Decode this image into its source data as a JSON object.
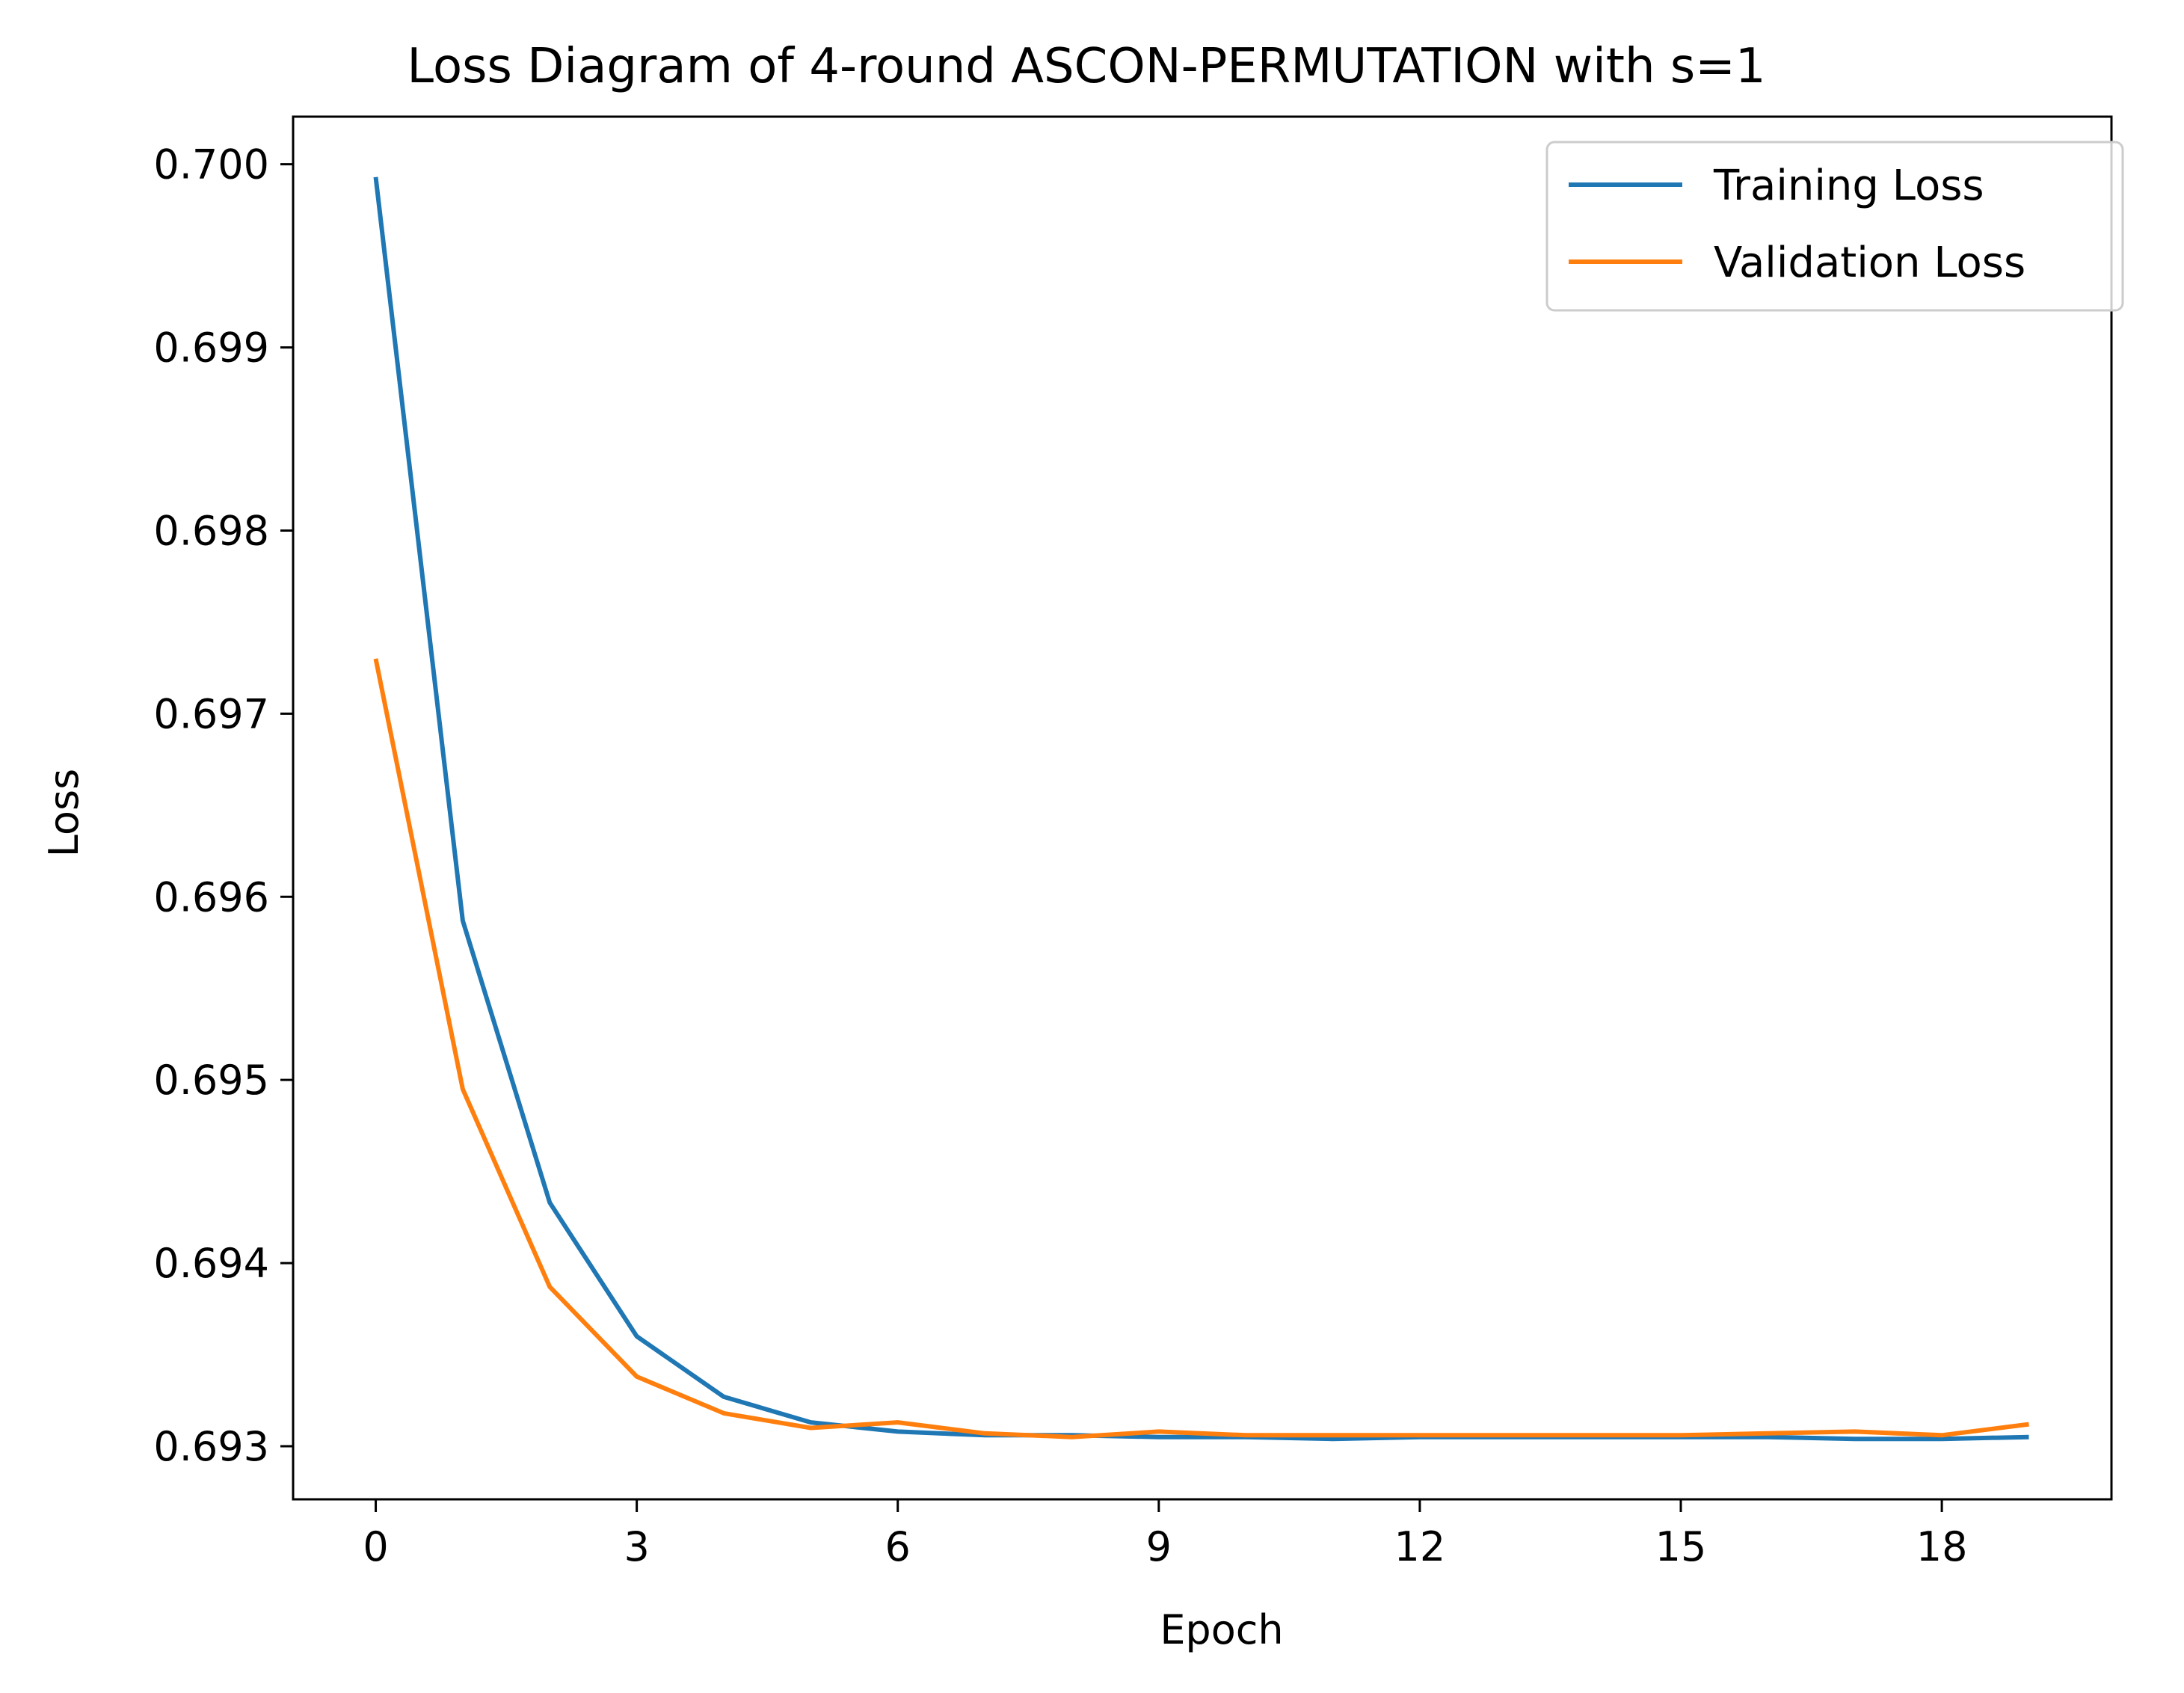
{
  "chart_data": {
    "type": "line",
    "title": "Loss Diagram of 4-round ASCON-PERMUTATION with s=1",
    "xlabel": "Epoch",
    "ylabel": "Loss",
    "xlim": [
      -0.95,
      19.95
    ],
    "ylim": [
      0.69271,
      0.70026
    ],
    "x_ticks": [
      0,
      3,
      6,
      9,
      12,
      15,
      18
    ],
    "x_tick_labels": [
      "0",
      "3",
      "6",
      "9",
      "12",
      "15",
      "18"
    ],
    "y_ticks": [
      0.693,
      0.694,
      0.695,
      0.696,
      0.697,
      0.698,
      0.699,
      0.7
    ],
    "y_tick_labels": [
      "0.693",
      "0.694",
      "0.695",
      "0.696",
      "0.697",
      "0.698",
      "0.699",
      "0.700"
    ],
    "grid": false,
    "legend_position": "top-right",
    "x": [
      0,
      1,
      2,
      3,
      4,
      5,
      6,
      7,
      8,
      9,
      10,
      11,
      12,
      13,
      14,
      15,
      16,
      17,
      18,
      19
    ],
    "series": [
      {
        "name": "Training Loss",
        "color": "#1f77b4",
        "values": [
          0.69993,
          0.69587,
          0.69433,
          0.6936,
          0.69327,
          0.69313,
          0.69308,
          0.69306,
          0.69306,
          0.69305,
          0.69305,
          0.69304,
          0.69305,
          0.69305,
          0.69305,
          0.69305,
          0.69305,
          0.69304,
          0.69304,
          0.69305
        ]
      },
      {
        "name": "Validation Loss",
        "color": "#ff7f0e",
        "values": [
          0.6973,
          0.69495,
          0.69387,
          0.69338,
          0.69318,
          0.6931,
          0.69313,
          0.69307,
          0.69305,
          0.69308,
          0.69306,
          0.69306,
          0.69306,
          0.69306,
          0.69306,
          0.69306,
          0.69307,
          0.69308,
          0.69306,
          0.69312
        ]
      }
    ]
  }
}
